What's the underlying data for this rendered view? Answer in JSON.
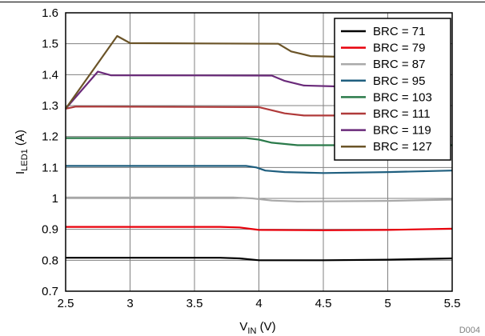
{
  "chart_data": {
    "type": "line",
    "xlim": [
      2.5,
      5.5
    ],
    "ylim": [
      0.7,
      1.6
    ],
    "x_ticks": [
      "2.5",
      "3",
      "3.5",
      "4",
      "4.5",
      "5",
      "5.5"
    ],
    "y_ticks": [
      "0.7",
      "0.8",
      "0.9",
      "1",
      "1.1",
      "1.2",
      "1.3",
      "1.4",
      "1.5",
      "1.6"
    ],
    "xlabel": {
      "main": "V",
      "sub": "IN",
      "suffix": " (V)"
    },
    "ylabel": {
      "main": "I",
      "sub": "LED1",
      "suffix": " (A)"
    },
    "grid": true,
    "legend_position": "top-right",
    "series": [
      {
        "name": "BRC = 71",
        "color": "#000000",
        "x": [
          2.5,
          3.7,
          3.85,
          4.0,
          4.5,
          5.0,
          5.5
        ],
        "y": [
          0.808,
          0.808,
          0.806,
          0.8,
          0.8,
          0.802,
          0.806
        ]
      },
      {
        "name": "BRC = 79",
        "color": "#e8000b",
        "x": [
          2.5,
          3.7,
          3.85,
          4.0,
          4.5,
          5.0,
          5.5
        ],
        "y": [
          0.908,
          0.908,
          0.906,
          0.898,
          0.897,
          0.898,
          0.902
        ]
      },
      {
        "name": "BRC = 87",
        "color": "#a9a9a9",
        "x": [
          2.5,
          3.8,
          3.95,
          4.1,
          4.3,
          5.0,
          5.5
        ],
        "y": [
          1.003,
          1.003,
          1.0,
          0.993,
          0.99,
          0.992,
          0.996
        ]
      },
      {
        "name": "BRC = 95",
        "color": "#1f5f7f",
        "x": [
          2.5,
          3.9,
          3.98,
          4.05,
          4.2,
          4.5,
          5.0,
          5.5
        ],
        "y": [
          1.105,
          1.105,
          1.1,
          1.09,
          1.085,
          1.082,
          1.085,
          1.09
        ]
      },
      {
        "name": "BRC = 103",
        "color": "#2a7a4a",
        "x": [
          2.5,
          3.9,
          4.0,
          4.1,
          4.3,
          4.5,
          5.5
        ],
        "y": [
          1.195,
          1.195,
          1.19,
          1.18,
          1.172,
          1.172,
          1.172
        ]
      },
      {
        "name": "BRC = 111",
        "color": "#b03a3a",
        "x": [
          2.5,
          2.58,
          4.0,
          4.1,
          4.2,
          4.35,
          4.6
        ],
        "y": [
          1.29,
          1.297,
          1.295,
          1.285,
          1.275,
          1.268,
          1.268
        ]
      },
      {
        "name": "BRC = 119",
        "color": "#6a2a7a",
        "x": [
          2.5,
          2.75,
          2.85,
          4.1,
          4.2,
          4.35,
          4.6
        ],
        "y": [
          1.29,
          1.41,
          1.398,
          1.397,
          1.38,
          1.365,
          1.362
        ]
      },
      {
        "name": "BRC = 127",
        "color": "#6b5428",
        "x": [
          2.5,
          2.9,
          3.0,
          4.15,
          4.25,
          4.4,
          4.6
        ],
        "y": [
          1.29,
          1.525,
          1.502,
          1.5,
          1.475,
          1.46,
          1.458
        ]
      }
    ]
  },
  "watermark": "D004"
}
